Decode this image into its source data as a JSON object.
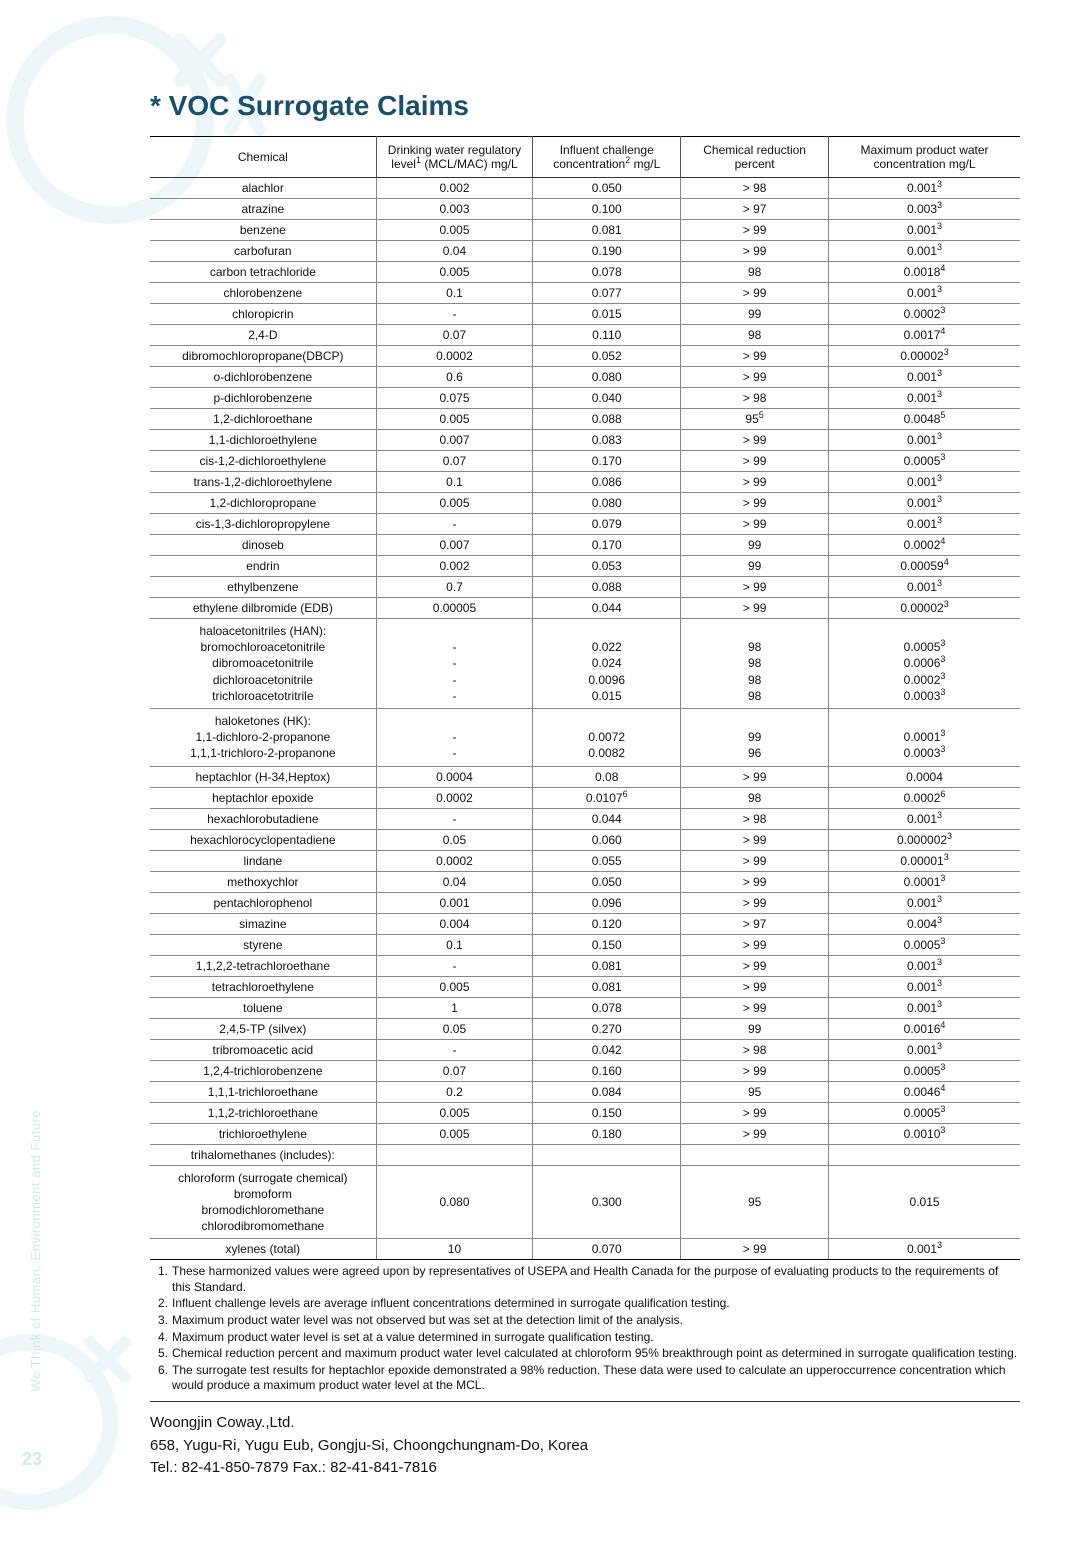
{
  "title": "* VOC Surrogate Claims",
  "page_number": "23",
  "side_text": "We Think of Human, Environment and Future",
  "bg_color": "#ffffff",
  "accent_color": "#17506b",
  "watermark_color": "#cfe8f0",
  "table": {
    "columns": [
      {
        "key": "chem",
        "label_html": "Chemical"
      },
      {
        "key": "reg",
        "label_html": "Drinking water regulatory<br>level<sup>1</sup> (MCL/MAC) mg/L"
      },
      {
        "key": "inf",
        "label_html": "Influent challenge<br>concentration<sup>2</sup> mg/L"
      },
      {
        "key": "red",
        "label_html": "Chemical reduction<br>percent"
      },
      {
        "key": "max",
        "label_html": "Maximum product water<br>concentration mg/L"
      }
    ],
    "col_widths_pct": [
      26,
      18,
      17,
      17,
      22
    ],
    "border_color": "#555555",
    "row_border_color": "#888888",
    "header_bg": "#ffffff",
    "fontsize": 12,
    "rows": [
      {
        "chem": "alachlor",
        "reg": "0.002",
        "inf": "0.050",
        "red": "> 98",
        "max_html": "0.001<sup>3</sup>"
      },
      {
        "chem": "atrazine",
        "reg": "0.003",
        "inf": "0.100",
        "red": "> 97",
        "max_html": "0.003<sup>3</sup>"
      },
      {
        "chem": "benzene",
        "reg": "0.005",
        "inf": "0.081",
        "red": "> 99",
        "max_html": "0.001<sup>3</sup>"
      },
      {
        "chem": "carbofuran",
        "reg": "0.04",
        "inf": "0.190",
        "red": "> 99",
        "max_html": "0.001<sup>3</sup>"
      },
      {
        "chem": "carbon tetrachloride",
        "reg": "0.005",
        "inf": "0.078",
        "red": "98",
        "max_html": "0.0018<sup>4</sup>"
      },
      {
        "chem": "chlorobenzene",
        "reg": "0.1",
        "inf": "0.077",
        "red": "> 99",
        "max_html": "0.001<sup>3</sup>"
      },
      {
        "chem": "chloropicrin",
        "reg": "-",
        "inf": "0.015",
        "red": "99",
        "max_html": "0.0002<sup>3</sup>"
      },
      {
        "chem": "2,4-D",
        "reg": "0.07",
        "inf": "0.110",
        "red": "98",
        "max_html": "0.0017<sup>4</sup>"
      },
      {
        "chem": "dibromochloropropane(DBCP)",
        "reg": "0.0002",
        "inf": "0.052",
        "red": "> 99",
        "max_html": "0.00002<sup>3</sup>"
      },
      {
        "chem": "o-dichlorobenzene",
        "reg": "0.6",
        "inf": "0.080",
        "red": "> 99",
        "max_html": "0.001<sup>3</sup>"
      },
      {
        "chem": "p-dichlorobenzene",
        "reg": "0.075",
        "inf": "0.040",
        "red": "> 98",
        "max_html": "0.001<sup>3</sup>"
      },
      {
        "chem": "1,2-dichloroethane",
        "reg": "0.005",
        "inf": "0.088",
        "red_html": "95<sup>5</sup>",
        "max_html": "0.0048<sup>5</sup>"
      },
      {
        "chem": "1,1-dichloroethylene",
        "reg": "0.007",
        "inf": "0.083",
        "red": "> 99",
        "max_html": "0.001<sup>3</sup>"
      },
      {
        "chem": "cis-1,2-dichloroethylene",
        "reg": "0.07",
        "inf": "0.170",
        "red": "> 99",
        "max_html": "0.0005<sup>3</sup>"
      },
      {
        "chem": "trans-1,2-dichloroethylene",
        "reg": "0.1",
        "inf": "0.086",
        "red": "> 99",
        "max_html": "0.001<sup>3</sup>"
      },
      {
        "chem": "1,2-dichloropropane",
        "reg": "0.005",
        "inf": "0.080",
        "red": "> 99",
        "max_html": "0.001<sup>3</sup>"
      },
      {
        "chem": "cis-1,3-dichloropropylene",
        "reg": "-",
        "inf": "0.079",
        "red": "> 99",
        "max_html": "0.001<sup>3</sup>"
      },
      {
        "chem": "dinoseb",
        "reg": "0.007",
        "inf": "0.170",
        "red": "99",
        "max_html": "0.0002<sup>4</sup>"
      },
      {
        "chem": "endrin",
        "reg": "0.002",
        "inf": "0.053",
        "red": "99",
        "max_html": "0.00059<sup>4</sup>"
      },
      {
        "chem": "ethylbenzene",
        "reg": "0.7",
        "inf": "0.088",
        "red": "> 99",
        "max_html": "0.001<sup>3</sup>"
      },
      {
        "chem": "ethylene dilbromide (EDB)",
        "reg": "0.00005",
        "inf": "0.044",
        "red": "> 99",
        "max_html": "0.00002<sup>3</sup>"
      },
      {
        "chem_html": "haloacetonitriles (HAN):<br>bromochloroacetonitrile<br>dibromoacetonitrile<br>dichloroacetonitrile<br>trichloroacetotritrile",
        "reg_html": "<br>-<br>-<br>-<br>-",
        "inf_html": "<br>0.022<br>0.024<br>0.0096<br>0.015",
        "red_html": "<br>98<br>98<br>98<br>98",
        "max_html": "<br>0.0005<sup>3</sup><br>0.0006<sup>3</sup><br>0.0002<sup>3</sup><br>0.0003<sup>3</sup>",
        "multi": true
      },
      {
        "chem_html": "haloketones (HK):<br>1,1-dichloro-2-propanone<br>1,1,1-trichloro-2-propanone",
        "reg_html": "<br>-<br>-",
        "inf_html": "<br>0.0072<br>0.0082",
        "red_html": "<br>99<br>96",
        "max_html": "<br>0.0001<sup>3</sup><br>0.0003<sup>3</sup>",
        "multi": true
      },
      {
        "chem": "heptachlor (H-34,Heptox)",
        "reg": "0.0004",
        "inf": "0.08",
        "red": "> 99",
        "max_html": "0.0004"
      },
      {
        "chem": "heptachlor epoxide",
        "reg": "0.0002",
        "inf_html": "0.0107<sup>6</sup>",
        "red": "98",
        "max_html": "0.0002<sup>6</sup>"
      },
      {
        "chem": "hexachlorobutadiene",
        "reg": "-",
        "inf": "0.044",
        "red": "> 98",
        "max_html": "0.001<sup>3</sup>"
      },
      {
        "chem": "hexachlorocyclopentadiene",
        "reg": "0.05",
        "inf": "0.060",
        "red": "> 99",
        "max_html": "0.000002<sup>3</sup>"
      },
      {
        "chem": "lindane",
        "reg": "0.0002",
        "inf": "0.055",
        "red": "> 99",
        "max_html": "0.00001<sup>3</sup>"
      },
      {
        "chem": "methoxychlor",
        "reg": "0.04",
        "inf": "0.050",
        "red": "> 99",
        "max_html": "0.0001<sup>3</sup>"
      },
      {
        "chem": "pentachlorophenol",
        "reg": "0.001",
        "inf": "0.096",
        "red": "> 99",
        "max_html": "0.001<sup>3</sup>"
      },
      {
        "chem": "simazine",
        "reg": "0.004",
        "inf": "0.120",
        "red": "> 97",
        "max_html": "0.004<sup>3</sup>"
      },
      {
        "chem": "styrene",
        "reg": "0.1",
        "inf": "0.150",
        "red": "> 99",
        "max_html": "0.0005<sup>3</sup>"
      },
      {
        "chem": "1,1,2,2-tetrachloroethane",
        "reg": "-",
        "inf": "0.081",
        "red": "> 99",
        "max_html": "0.001<sup>3</sup>"
      },
      {
        "chem": "tetrachloroethylene",
        "reg": "0.005",
        "inf": "0.081",
        "red": "> 99",
        "max_html": "0.001<sup>3</sup>"
      },
      {
        "chem": "toluene",
        "reg": "1",
        "inf": "0.078",
        "red": "> 99",
        "max_html": "0.001<sup>3</sup>"
      },
      {
        "chem": "2,4,5-TP (silvex)",
        "reg": "0.05",
        "inf": "0.270",
        "red": "99",
        "max_html": "0.0016<sup>4</sup>"
      },
      {
        "chem": "tribromoacetic acid",
        "reg": "-",
        "inf": "0.042",
        "red": "> 98",
        "max_html": "0.001<sup>3</sup>"
      },
      {
        "chem": "1,2,4-trichlorobenzene",
        "reg": "0.07",
        "inf": "0.160",
        "red": "> 99",
        "max_html": "0.0005<sup>3</sup>"
      },
      {
        "chem": "1,1,1-trichloroethane",
        "reg": "0.2",
        "inf": "0.084",
        "red": "95",
        "max_html": "0.0046<sup>4</sup>"
      },
      {
        "chem": "1,1,2-trichloroethane",
        "reg": "0.005",
        "inf": "0.150",
        "red": "> 99",
        "max_html": "0.0005<sup>3</sup>"
      },
      {
        "chem": "trichloroethylene",
        "reg": "0.005",
        "inf": "0.180",
        "red": "> 99",
        "max_html": "0.0010<sup>3</sup>"
      },
      {
        "chem": "trihalomethanes (includes):",
        "reg": "",
        "inf": "",
        "red": "",
        "max_html": ""
      },
      {
        "chem_html": "chloroform (surrogate chemical)<br>bromoform<br>bromodichloromethane<br>chlorodibromomethane",
        "reg_html": "0.080",
        "inf_html": "0.300",
        "red_html": "95",
        "max_html": "0.015",
        "multi": true
      },
      {
        "chem": "xylenes (total)",
        "reg": "10",
        "inf": "0.070",
        "red": "> 99",
        "max_html": "0.001<sup>3</sup>"
      }
    ]
  },
  "notes": [
    "These harmonized values were agreed upon by representatives of USEPA and Health Canada for the purpose of evaluating products to the requirements of this Standard.",
    "Influent challenge levels are average influent concentrations determined in surrogate qualification testing.",
    "Maximum product water level was not observed but was set at the detection limit of the analysis.",
    "Maximum product water level is set at a value determined in surrogate qualification testing.",
    "Chemical reduction percent and maximum product water level calculated at chloroform 95% breakthrough point as determined in surrogate qualification testing.",
    "The surrogate test results for heptachlor epoxide demonstrated a 98% reduction. These data were used to calculate an upperoccurrence concentration which would produce a maximum product water level at the MCL."
  ],
  "footer": {
    "company": "Woongjin Coway.,Ltd.",
    "address": "658, Yugu-Ri, Yugu Eub, Gongju-Si, Choongchungnam-Do, Korea",
    "contact": "Tel.: 82-41-850-7879 Fax.: 82-41-841-7816"
  }
}
